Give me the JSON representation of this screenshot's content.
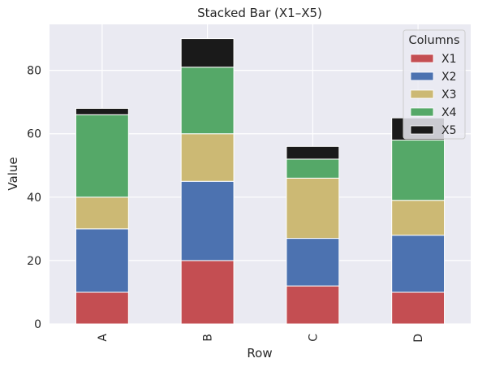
{
  "chart_data": {
    "type": "bar",
    "stacked": true,
    "title": "Stacked Bar (X1–X5)",
    "xlabel": "Row",
    "ylabel": "Value",
    "categories": [
      "A",
      "B",
      "C",
      "D"
    ],
    "ylim": [
      0,
      94.5
    ],
    "yticks": [
      0,
      20,
      40,
      60,
      80
    ],
    "grid": true,
    "legend": {
      "title": "Columns",
      "position": "top-right"
    },
    "series": [
      {
        "name": "X1",
        "color": "#c44e52",
        "values": [
          10,
          20,
          12,
          10
        ]
      },
      {
        "name": "X2",
        "color": "#4c72b0",
        "values": [
          20,
          25,
          15,
          18
        ]
      },
      {
        "name": "X3",
        "color": "#ccb974",
        "values": [
          10,
          15,
          19,
          11
        ]
      },
      {
        "name": "X4",
        "color": "#55a868",
        "values": [
          26,
          21,
          6,
          19
        ]
      },
      {
        "name": "X5",
        "color": "#1a1a1a",
        "values": [
          2,
          9,
          4,
          7
        ]
      }
    ]
  },
  "colors": {
    "plot_background": "#eaeaf2",
    "grid": "#ffffff",
    "text": "#262626"
  }
}
